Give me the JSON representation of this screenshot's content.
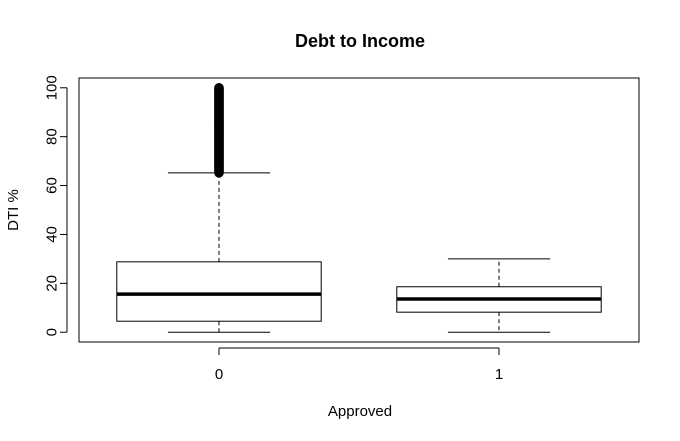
{
  "chart_data": {
    "type": "boxplot",
    "title": "Debt to Income",
    "xlabel": "Approved",
    "ylabel": "DTI %",
    "ylim": [
      -4,
      104
    ],
    "y_ticks": [
      0,
      20,
      40,
      60,
      80,
      100
    ],
    "grid": false,
    "legend": "none",
    "categories": [
      "0",
      "1"
    ],
    "boxes": [
      {
        "category": "0",
        "min": 0,
        "q1": 4.5,
        "median": 15.6,
        "q3": 28.8,
        "max": 65.2,
        "outlier_range": [
          65.2,
          100
        ]
      },
      {
        "category": "1",
        "min": 0,
        "q1": 8.2,
        "median": 13.6,
        "q3": 18.6,
        "max": 30,
        "outlier_range": null
      }
    ]
  }
}
